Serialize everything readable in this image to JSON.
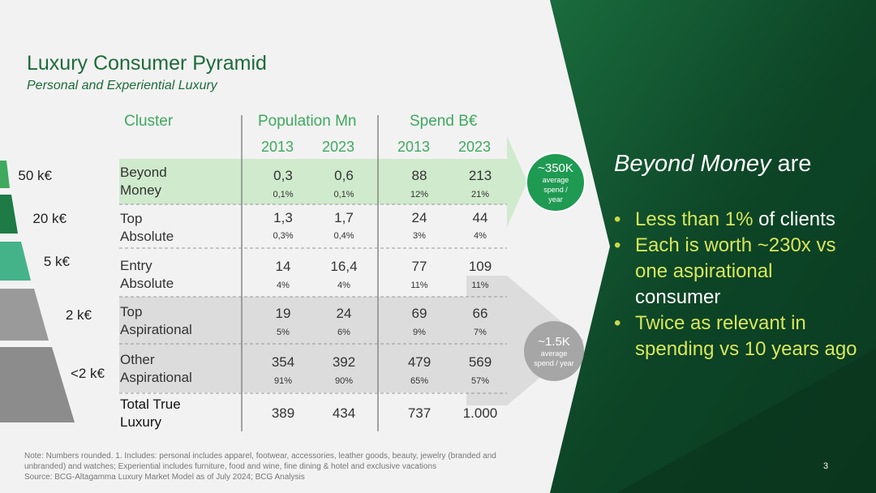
{
  "title": "Luxury Consumer Pyramid",
  "subtitle": "Personal and Experiential Luxury",
  "headers": {
    "cluster": "Cluster",
    "population": "Population Mn",
    "spend": "Spend B€"
  },
  "years": [
    "2013",
    "2023",
    "2013",
    "2023"
  ],
  "tiers": [
    "50 k€",
    "20 k€",
    "5 k€",
    "2 k€",
    "<2 k€"
  ],
  "rows": [
    {
      "label1": "Beyond",
      "label2": "Money",
      "pop2013": "0,3",
      "pop2023": "0,6",
      "popPct2013": "0,1%",
      "popPct2023": "0,1%",
      "sp2013": "88",
      "sp2023": "213",
      "spPct2013": "12%",
      "spPct2023": "21%"
    },
    {
      "label1": "Top",
      "label2": "Absolute",
      "pop2013": "1,3",
      "pop2023": "1,7",
      "popPct2013": "0,3%",
      "popPct2023": "0,4%",
      "sp2013": "24",
      "sp2023": "44",
      "spPct2013": "3%",
      "spPct2023": "4%"
    },
    {
      "label1": "Entry",
      "label2": "Absolute",
      "pop2013": "14",
      "pop2023": "16,4",
      "popPct2013": "4%",
      "popPct2023": "4%",
      "sp2013": "77",
      "sp2023": "109",
      "spPct2013": "11%",
      "spPct2023": "11%"
    },
    {
      "label1": "Top",
      "label2": "Aspirational",
      "pop2013": "19",
      "pop2023": "24",
      "popPct2013": "5%",
      "popPct2023": "6%",
      "sp2013": "69",
      "sp2023": "66",
      "spPct2013": "9%",
      "spPct2023": "7%"
    },
    {
      "label1": "Other",
      "label2": "Aspirational",
      "pop2013": "354",
      "pop2023": "392",
      "popPct2013": "91%",
      "popPct2023": "90%",
      "sp2013": "479",
      "sp2023": "569",
      "spPct2013": "65%",
      "spPct2023": "57%"
    }
  ],
  "total": {
    "label1": "Total True",
    "label2": "Luxury",
    "pop2013": "389",
    "pop2023": "434",
    "sp2013": "737",
    "sp2023": "1.000"
  },
  "circle_top": {
    "value": "~350K",
    "line1": "average",
    "line2": "spend /",
    "line3": "year"
  },
  "circle_bottom": {
    "value": "~1.5K",
    "line1": "average",
    "line2": "spend / year"
  },
  "right": {
    "title_em": "Beyond Money",
    "title_rest": " are",
    "b1_hl": "Less than 1%",
    "b1_rest": " of clients",
    "b2_hl": "Each is worth ~230x vs one aspirational",
    "b2_rest": " consumer",
    "b3_hl": "Twice as relevant in spending vs 10 years ago"
  },
  "note": "Note: Numbers rounded. 1. Includes: personal includes apparel, footwear, accessories, leather goods, beauty, jewelry (branded and unbranded) and watches; Experiential includes furniture, food and wine, fine dining & hotel and exclusive vacations",
  "source": "Source: BCG-Altagamma Luxury Market Model as of July 2024; BCG Analysis",
  "page_number": "3",
  "colors": {
    "accent": "#3ea95f",
    "dark_green": "#0f4a2c",
    "highlight_row": "#cfeacc",
    "gray_row": "#dcdcdc",
    "bullet_text": "#d7e75a"
  }
}
